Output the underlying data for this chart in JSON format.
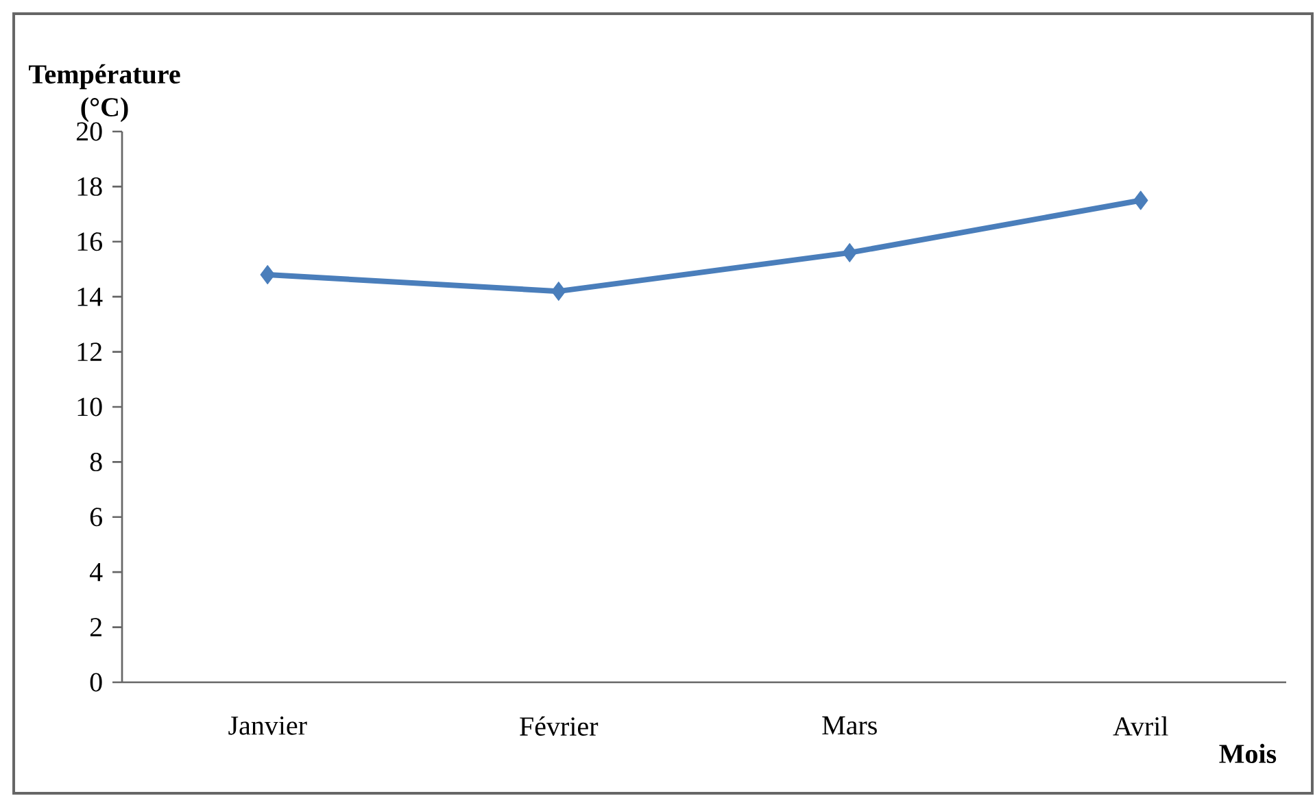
{
  "chart_data": {
    "type": "line",
    "xlabel": "Mois",
    "ylabel": "Température (°C)",
    "categories": [
      "Janvier",
      "Février",
      "Mars",
      "Avril"
    ],
    "series": [
      {
        "color": "#4a7ebb",
        "values": [
          14.8,
          14.2,
          15.6,
          17.5
        ]
      }
    ],
    "ylim": [
      0,
      20
    ],
    "yticks": [
      0,
      2,
      4,
      6,
      8,
      10,
      12,
      14,
      16,
      18,
      20
    ],
    "marker": "diamond",
    "line_style": "solid",
    "grid": false
  }
}
